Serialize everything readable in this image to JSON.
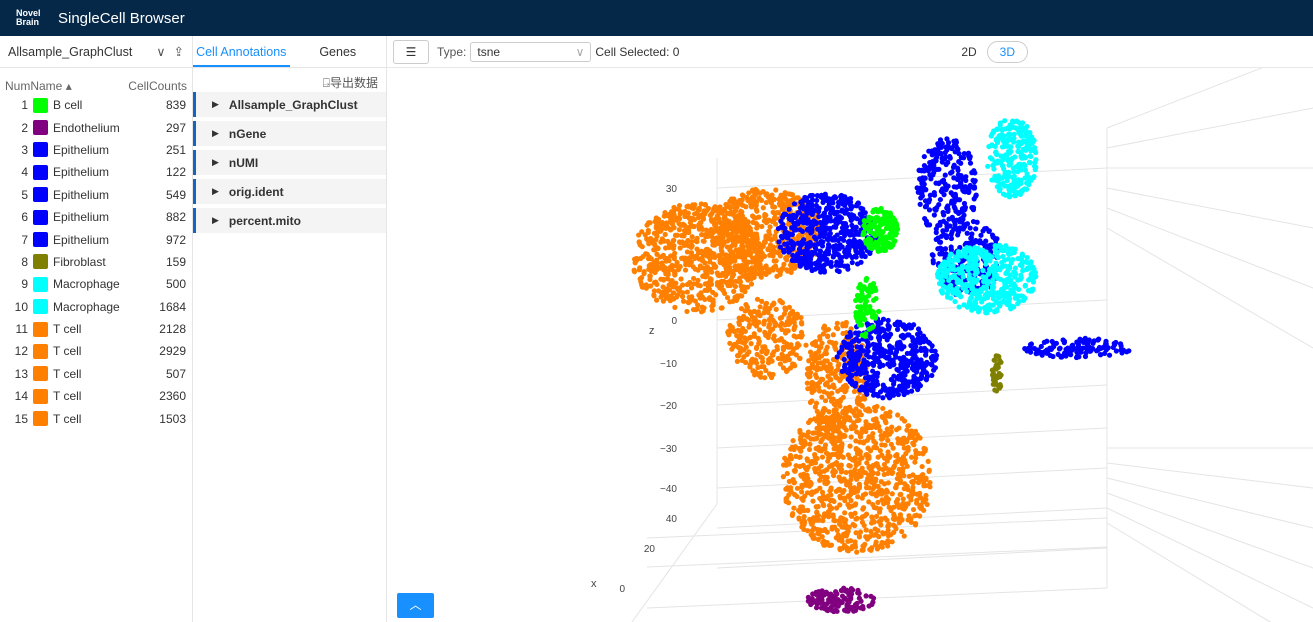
{
  "header": {
    "logo": "NovelBrain",
    "title": "SingleCell Browser"
  },
  "left": {
    "selector": "Allsample_GraphClust",
    "columns": {
      "num": "Num",
      "name": "Name ▴",
      "counts": "CellCounts"
    },
    "rows": [
      {
        "num": "1",
        "name": "B cell",
        "count": "839",
        "color": "#00ff00"
      },
      {
        "num": "2",
        "name": "Endothelium",
        "count": "297",
        "color": "#800080"
      },
      {
        "num": "3",
        "name": "Epithelium",
        "count": "251",
        "color": "#0000ff"
      },
      {
        "num": "4",
        "name": "Epithelium",
        "count": "122",
        "color": "#0000ff"
      },
      {
        "num": "5",
        "name": "Epithelium",
        "count": "549",
        "color": "#0000ff"
      },
      {
        "num": "6",
        "name": "Epithelium",
        "count": "882",
        "color": "#0000ff"
      },
      {
        "num": "7",
        "name": "Epithelium",
        "count": "972",
        "color": "#0000ff"
      },
      {
        "num": "8",
        "name": "Fibroblast",
        "count": "159",
        "color": "#808000"
      },
      {
        "num": "9",
        "name": "Macrophage",
        "count": "500",
        "color": "#00ffff"
      },
      {
        "num": "10",
        "name": "Macrophage",
        "count": "1684",
        "color": "#00ffff"
      },
      {
        "num": "11",
        "name": "T cell",
        "count": "2128",
        "color": "#ff8000"
      },
      {
        "num": "12",
        "name": "T cell",
        "count": "2929",
        "color": "#ff8000"
      },
      {
        "num": "13",
        "name": "T cell",
        "count": "507",
        "color": "#ff8000"
      },
      {
        "num": "14",
        "name": "T cell",
        "count": "2360",
        "color": "#ff8000"
      },
      {
        "num": "15",
        "name": "T cell",
        "count": "1503",
        "color": "#ff8000"
      }
    ]
  },
  "middle": {
    "tabs": [
      "Cell Annotations",
      "Genes"
    ],
    "export": "导出数据",
    "annotations": [
      "Allsample_GraphClust",
      "nGene",
      "nUMI",
      "orig.ident",
      "percent.mito"
    ]
  },
  "toolbar": {
    "type_label": "Type:",
    "type_value": "tsne",
    "selected_label": "Cell Selected:",
    "selected_value": "0",
    "mode_2d": "2D",
    "mode_3d": "3D",
    "active_mode": "3D"
  },
  "plot": {
    "z_label": "z",
    "x_label": "x",
    "z_ticks": [
      "30",
      "0",
      "−10",
      "−20",
      "−30",
      "−40"
    ],
    "x_ticks": [
      "40",
      "20",
      "0"
    ]
  }
}
